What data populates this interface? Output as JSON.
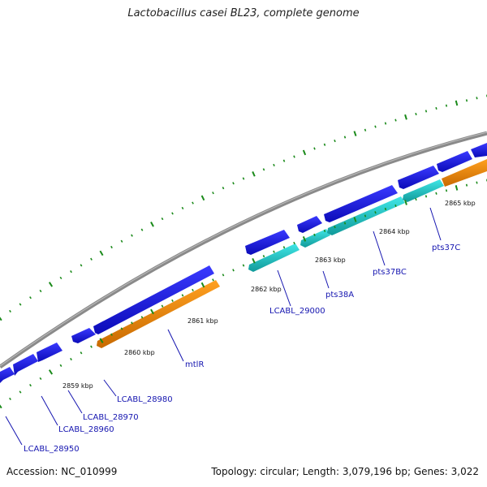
{
  "title": "Lactobacillus casei BL23, complete genome",
  "footer": {
    "accession": "Accession: NC_010999",
    "topology": "Topology: circular; Length: 3,079,196 bp; Genes: 3,022"
  },
  "colors": {
    "backbone": "#8c8c8c",
    "forward_gene": "#1a1ae0",
    "reverse_gene_orange": "#f08a10",
    "reverse_gene_cyan": "#22cfcf",
    "tick": "#1a8a1a",
    "label_line": "#1515b0",
    "label_text": "#1515b0"
  },
  "scale": {
    "ticks": [
      "2859 kbp",
      "2860 kbp",
      "2861 kbp",
      "2862 kbp",
      "2863 kbp",
      "2864 kbp",
      "2865 kbp"
    ]
  },
  "genes": [
    {
      "label": "LCABL_28950",
      "strand": "forward",
      "color": "blue"
    },
    {
      "label": "LCABL_28960",
      "strand": "forward",
      "color": "blue"
    },
    {
      "label": "LCABL_28970",
      "strand": "forward",
      "color": "blue"
    },
    {
      "label": "LCABL_28980",
      "strand": "forward",
      "color": "blue"
    },
    {
      "label": "mtlR",
      "strand": "reverse",
      "color": "orange"
    },
    {
      "label": "LCABL_29000",
      "strand": "forward",
      "color": "blue"
    },
    {
      "label": "pts38A",
      "strand": "reverse",
      "color": "cyan"
    },
    {
      "label": "pts37BC",
      "strand": "reverse",
      "color": "cyan"
    },
    {
      "label": "pts37C",
      "strand": "reverse",
      "color": "cyan"
    }
  ]
}
